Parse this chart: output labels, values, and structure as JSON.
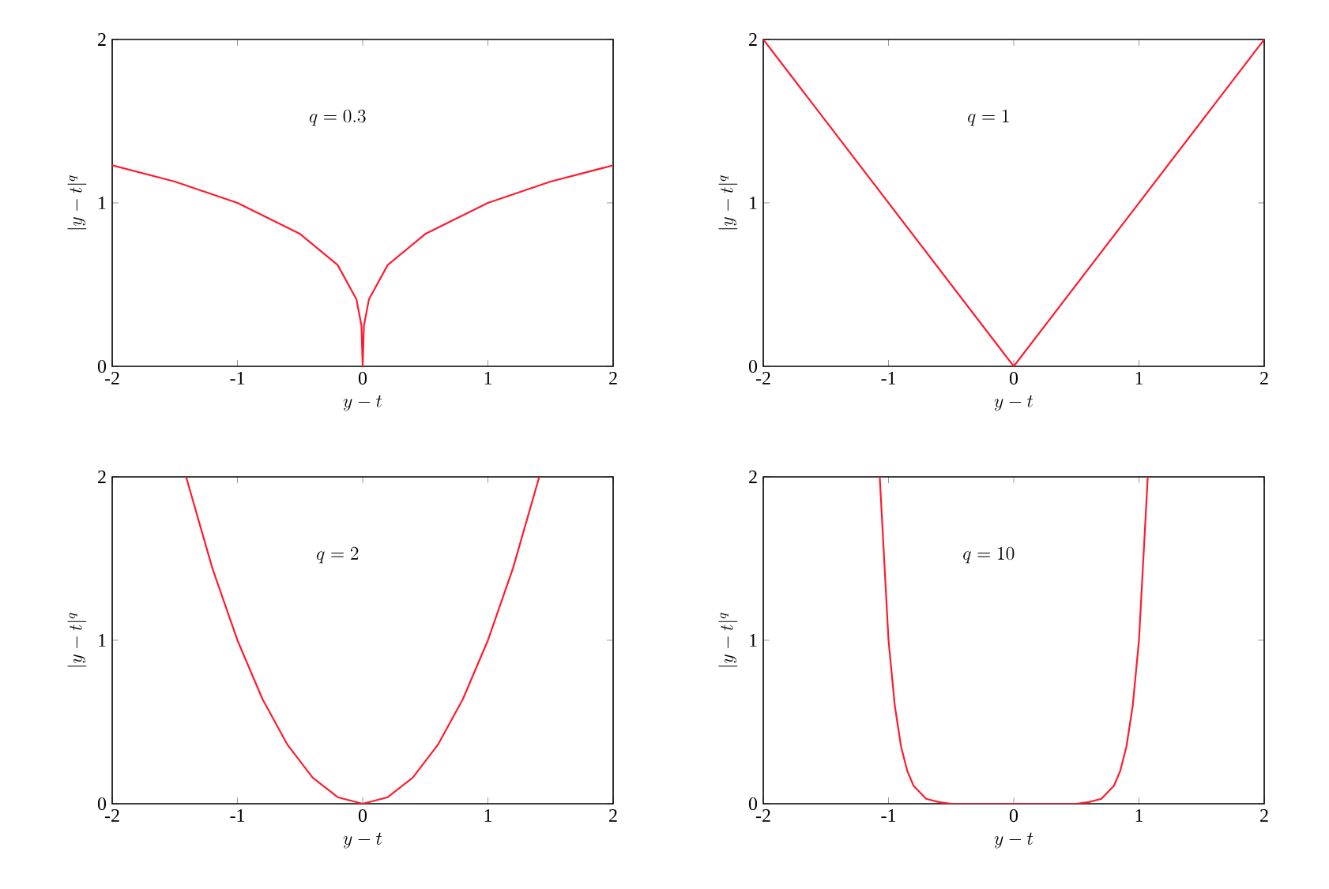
{
  "chart_data": [
    {
      "type": "line",
      "xlabel": "y-t",
      "ylabel": "|y-t|^q",
      "annotations": [
        "q=0.3"
      ],
      "color": "#ff1a2e",
      "xlim": [
        -2,
        2
      ],
      "ylim": [
        0,
        2
      ],
      "xticks": [
        -2,
        -1,
        0,
        1,
        2
      ],
      "yticks": [
        0,
        1,
        2
      ],
      "x": [
        -2,
        -1.5,
        -1,
        -0.5,
        -0.2,
        -0.05,
        -0.01,
        0,
        0.01,
        0.05,
        0.2,
        0.5,
        1,
        1.5,
        2
      ],
      "values": [
        1.23,
        1.13,
        1,
        0.81,
        0.62,
        0.41,
        0.25,
        0,
        0.25,
        0.41,
        0.62,
        0.81,
        1,
        1.13,
        1.23
      ]
    },
    {
      "type": "line",
      "xlabel": "y-t",
      "ylabel": "|y-t|^q",
      "annotations": [
        "q=1"
      ],
      "color": "#ff1a2e",
      "xlim": [
        -2,
        2
      ],
      "ylim": [
        0,
        2
      ],
      "xticks": [
        -2,
        -1,
        0,
        1,
        2
      ],
      "yticks": [
        0,
        1,
        2
      ],
      "x": [
        -2,
        0,
        2
      ],
      "values": [
        2,
        0,
        2
      ]
    },
    {
      "type": "line",
      "xlabel": "y-t",
      "ylabel": "|y-t|^q",
      "annotations": [
        "q=2"
      ],
      "color": "#ff1a2e",
      "xlim": [
        -2,
        2
      ],
      "ylim": [
        0,
        2
      ],
      "xticks": [
        -2,
        -1,
        0,
        1,
        2
      ],
      "yticks": [
        0,
        1,
        2
      ],
      "x": [
        -1.41,
        -1.2,
        -1,
        -0.8,
        -0.6,
        -0.4,
        -0.2,
        0,
        0.2,
        0.4,
        0.6,
        0.8,
        1,
        1.2,
        1.41
      ],
      "values": [
        2,
        1.44,
        1,
        0.64,
        0.36,
        0.16,
        0.04,
        0,
        0.04,
        0.16,
        0.36,
        0.64,
        1,
        1.44,
        2
      ]
    },
    {
      "type": "line",
      "xlabel": "y-t",
      "ylabel": "|y-t|^q",
      "annotations": [
        "q=10"
      ],
      "color": "#ff1a2e",
      "xlim": [
        -2,
        2
      ],
      "ylim": [
        0,
        2
      ],
      "xticks": [
        -2,
        -1,
        0,
        1,
        2
      ],
      "yticks": [
        0,
        1,
        2
      ],
      "x": [
        -1.07,
        -1,
        -0.95,
        -0.9,
        -0.85,
        -0.8,
        -0.7,
        -0.6,
        -0.5,
        0,
        0.5,
        0.6,
        0.7,
        0.8,
        0.85,
        0.9,
        0.95,
        1,
        1.07
      ],
      "values": [
        2,
        1,
        0.6,
        0.35,
        0.2,
        0.11,
        0.03,
        0.01,
        0,
        0,
        0,
        0.01,
        0.03,
        0.11,
        0.2,
        0.35,
        0.6,
        1,
        2
      ]
    }
  ]
}
